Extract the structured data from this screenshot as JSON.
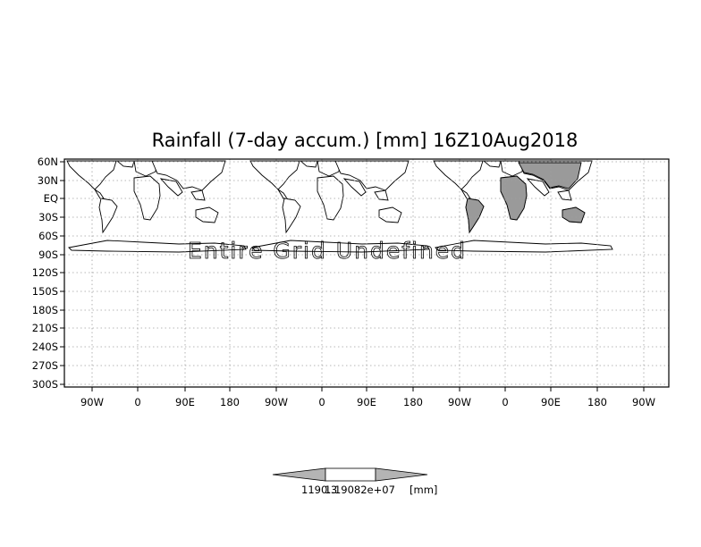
{
  "chart_data": {
    "type": "map",
    "title": "Rainfall (7-day accum.) [mm] 16Z10Aug2018",
    "annotation": "Entire Grid Undefined",
    "x_tick_labels": [
      "90W",
      "0",
      "90E",
      "180",
      "90W",
      "0",
      "90E",
      "180",
      "90W",
      "0",
      "90E",
      "180",
      "90W"
    ],
    "y_tick_labels": [
      "60N",
      "30N",
      "EQ",
      "30S",
      "60S",
      "90S",
      "120S",
      "150S",
      "180S",
      "210S",
      "240S",
      "270S",
      "300S"
    ],
    "grid": true,
    "colorbar": {
      "label_left": "1190.3",
      "label_right": "1.19082e+07",
      "unit": "[mm]",
      "colors": [
        "#b4b4b4",
        "#ffffff",
        "#b4b4b4"
      ]
    },
    "colors": {
      "land_shaded": "#9a9a9a",
      "grid_line": "#a0a0a0"
    }
  }
}
